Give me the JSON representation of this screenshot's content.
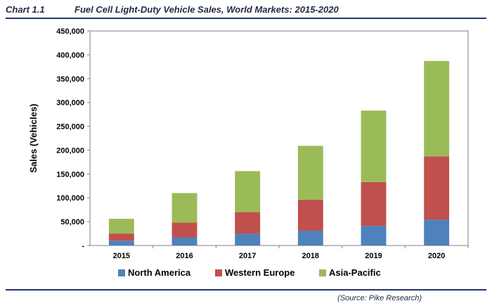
{
  "header": {
    "chart_label": "Chart 1.1",
    "title": "Fuel Cell Light-Duty Vehicle Sales, World Markets:  2015-2020"
  },
  "source": "(Source: Pike Research)",
  "colors": {
    "north_america": "#4f81bd",
    "western_europe": "#c0504d",
    "asia_pacific": "#9bbb59",
    "rule": "#25346a"
  },
  "chart_data": {
    "type": "bar",
    "stacked": true,
    "categories": [
      "2015",
      "2016",
      "2017",
      "2018",
      "2019",
      "2020"
    ],
    "series": [
      {
        "name": "North America",
        "values": [
          10000,
          17000,
          25000,
          31000,
          41000,
          54000
        ],
        "color": "#4f81bd"
      },
      {
        "name": "Western Europe",
        "values": [
          15000,
          31000,
          45000,
          65000,
          92000,
          133000
        ],
        "color": "#c0504d"
      },
      {
        "name": "Asia-Pacific",
        "values": [
          31000,
          62000,
          86000,
          113000,
          150000,
          200000
        ],
        "color": "#9bbb59"
      }
    ],
    "ylabel": "Sales (Vehicles)",
    "xlabel": "",
    "ylim": [
      0,
      450000
    ],
    "yticks": [
      0,
      50000,
      100000,
      150000,
      200000,
      250000,
      300000,
      350000,
      400000,
      450000
    ],
    "ytick_labels": [
      "-",
      "50,000",
      "100,000",
      "150,000",
      "200,000",
      "250,000",
      "300,000",
      "350,000",
      "400,000",
      "450,000"
    ],
    "grid": false,
    "legend_position": "bottom"
  }
}
